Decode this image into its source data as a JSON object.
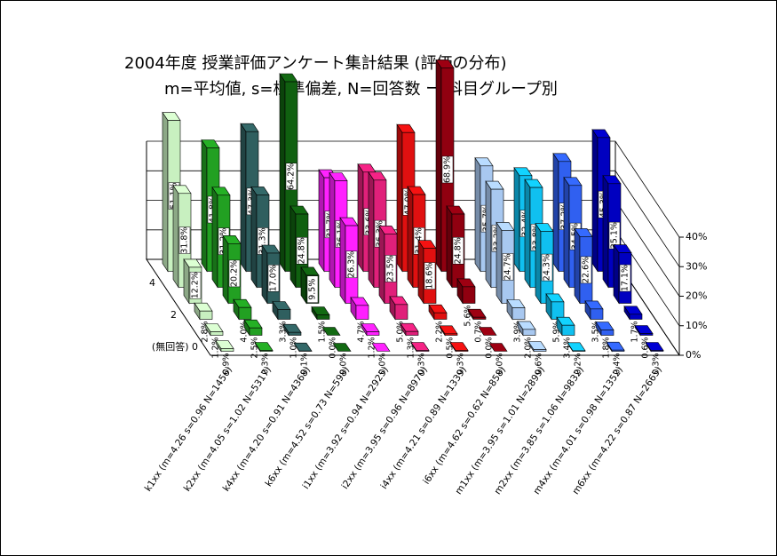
{
  "chart_data": {
    "type": "bar3d",
    "title": "2004年度 授業評価アンケート集計結果 (評価の分布)",
    "subtitle": "m=平均値, s=標準偏差, N=回答数 ー 科目グループ別",
    "categories": [
      "k1xx (m=4.26 s=0.96 N=1456)",
      "k2xx (m=4.05 s=1.02 N=5317)",
      "k4xx (m=4.20 s=0.91 N=4368)",
      "k6xx (m=4.52 s=0.73 N=598)",
      "i1xx (m=3.92 s=0.94 N=2925)",
      "i2xx (m=3.95 s=0.96 N=8970)",
      "i4xx (m=4.21 s=0.89 N=1339)",
      "i6xx (m=4.62 s=0.62 N=858)",
      "m1xx (m=3.95 s=1.01 N=2899)",
      "m2xx (m=3.85 s=1.06 N=9832)",
      "m4xx (m=4.01 s=0.98 N=1352)",
      "m6xx (m=4.22 s=0.87 N=2665)"
    ],
    "colors": [
      "#c8f0c0",
      "#22a022",
      "#2f5f5f",
      "#106010",
      "#ff20ff",
      "#e0207a",
      "#e01010",
      "#900010",
      "#a8c8f0",
      "#10c0f0",
      "#3060f0",
      "#0000c0"
    ],
    "series": [
      {
        "name": null,
        "values": [
          51.1,
          41.8,
          47.3,
          64.2,
          31.7,
          33.6,
          47.0,
          68.9,
          35.7,
          32.4,
          37.2,
          45.3
        ],
        "value_labels": [
          "51.1%",
          "41.8%",
          "47.3%",
          "64.2%",
          "31.7%",
          "33.6%",
          "47.0%",
          "68.9%",
          "35.7%",
          "32.4%",
          "37.2%",
          "45.3%"
        ]
      },
      {
        "name": "4",
        "values": [
          31.8,
          31.2,
          31.3,
          24.8,
          36.1,
          36.3,
          31.4,
          24.8,
          33.2,
          33.8,
          34.5,
          35.1
        ],
        "value_labels": [
          "31.8%",
          "31.2%",
          "31.3%",
          "24.8%",
          "36.1%",
          "36.3%",
          "31.4%",
          "24.8%",
          "33.2%",
          "33.8%",
          "34.5%",
          "35.1%"
        ]
      },
      {
        "name": null,
        "values": [
          12.2,
          20.2,
          17.0,
          9.5,
          26.3,
          23.5,
          18.6,
          5.6,
          24.7,
          24.3,
          22.6,
          17.1
        ],
        "value_labels": [
          "12.2%",
          "20.2%",
          "17.0%",
          "9.5%",
          "26.3%",
          "23.5%",
          "18.6%",
          "5.6%",
          "24.7%",
          "24.3%",
          "22.6%",
          "17.1%"
        ]
      },
      {
        "name": "2",
        "values": [
          2.8,
          4.0,
          3.3,
          1.5,
          4.7,
          5.0,
          2.2,
          0.7,
          3.9,
          5.9,
          3.5,
          1.7
        ],
        "value_labels": [
          "2.8%",
          "4.0%",
          "3.3%",
          "1.5%",
          "4.7%",
          "5.0%",
          "2.2%",
          "0.7%",
          "3.9%",
          "5.9%",
          "3.5%",
          "1.7%"
        ]
      },
      {
        "name": null,
        "values": [
          1.2,
          2.5,
          1.0,
          0.0,
          1.2,
          1.3,
          0.5,
          0.0,
          2.0,
          3.4,
          1.8,
          0.6
        ],
        "value_labels": [
          "1.2%",
          "2.5%",
          "1.0%",
          "0.0%",
          "1.2%",
          "1.3%",
          "0.5%",
          "0.0%",
          "2.0%",
          "3.4%",
          "1.8%",
          "0.6%"
        ]
      },
      {
        "name": "(無回答)  0",
        "values": [
          0.9,
          0.3,
          0.1,
          0.0,
          0.0,
          0.3,
          0.3,
          0.0,
          0.6,
          0.2,
          0.4,
          0.3
        ],
        "value_labels": [
          "0.9%",
          "0.3%",
          "0.1%",
          "0.0%",
          "0.0%",
          "0.3%",
          "0.3%",
          "0.0%",
          "0.6%",
          "0.2%",
          "0.4%",
          "0.3%"
        ]
      }
    ],
    "ylim": [
      0,
      40
    ],
    "yticks": [
      {
        "value": 0,
        "label": "0%"
      },
      {
        "value": 10,
        "label": "10%"
      },
      {
        "value": 20,
        "label": "20%"
      },
      {
        "value": 30,
        "label": "30%"
      },
      {
        "value": 40,
        "label": "40%"
      }
    ],
    "grid": true
  }
}
